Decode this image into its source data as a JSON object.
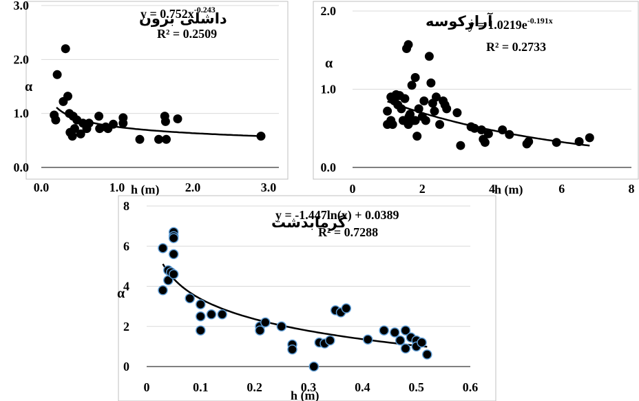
{
  "chart_data": [
    {
      "type": "scatter",
      "title": "داشلی برون",
      "equation": "y = 0.752x",
      "equation_exp": "-0.243",
      "r2": "R² = 0.2509",
      "xlabel": "h (m)",
      "ylabel": "α",
      "xlim": [
        0,
        3
      ],
      "ylim": [
        0,
        3
      ],
      "xticks": [
        "0.0",
        "1.0",
        "2.0",
        "3.0"
      ],
      "yticks": [
        "0.0",
        "1.0",
        "2.0",
        "3.0"
      ],
      "trendline": {
        "kind": "power",
        "a": 0.752,
        "b": -0.243,
        "x_from": 0.2,
        "x_to": 2.9
      },
      "series": [
        {
          "x": [
            0.17,
            0.19,
            0.21,
            0.29,
            0.32,
            0.35,
            0.37,
            0.38,
            0.41,
            0.42,
            0.44,
            0.47,
            0.52,
            0.55,
            0.6,
            0.63,
            0.76,
            0.77,
            0.85,
            0.88,
            0.95,
            1.08,
            1.08,
            1.3,
            1.55,
            1.63,
            1.64,
            1.65,
            1.8,
            2.9
          ],
          "y": [
            0.97,
            0.88,
            1.72,
            1.22,
            2.2,
            1.32,
            1.0,
            0.65,
            0.58,
            0.95,
            0.72,
            0.88,
            0.62,
            0.82,
            0.72,
            0.82,
            0.95,
            0.72,
            0.75,
            0.72,
            0.8,
            0.92,
            0.82,
            0.52,
            0.52,
            0.95,
            0.85,
            0.52,
            0.9,
            0.58
          ]
        }
      ]
    },
    {
      "type": "scatter",
      "title": "آرازکوسه",
      "equation": "y = 1.0219e",
      "equation_exp": "-0.191x",
      "r2": "R² = 0.2733",
      "xlabel": "h (m)",
      "ylabel": "α",
      "xlim": [
        0,
        8
      ],
      "ylim": [
        0,
        2
      ],
      "xticks": [
        "0",
        "2",
        "4",
        "6",
        "8"
      ],
      "yticks": [
        "0.0",
        "1.0",
        "2.0"
      ],
      "trendline": {
        "kind": "exp",
        "a": 1.0219,
        "b": -0.191,
        "x_from": 1.0,
        "x_to": 6.8
      },
      "series": [
        {
          "x": [
            1.0,
            1.0,
            1.1,
            1.1,
            1.15,
            1.2,
            1.25,
            1.3,
            1.35,
            1.4,
            1.45,
            1.5,
            1.55,
            1.6,
            1.6,
            1.62,
            1.65,
            1.7,
            1.75,
            1.8,
            1.8,
            1.85,
            1.9,
            2.0,
            2.05,
            2.1,
            2.2,
            2.25,
            2.3,
            2.35,
            2.4,
            2.5,
            2.6,
            2.65,
            2.7,
            3.0,
            3.1,
            3.4,
            3.5,
            3.7,
            3.75,
            3.8,
            3.9,
            4.3,
            4.5,
            5.0,
            5.05,
            5.85,
            6.5,
            6.8
          ],
          "y": [
            0.72,
            0.55,
            0.9,
            0.6,
            0.55,
            0.85,
            0.93,
            0.8,
            0.92,
            0.75,
            0.6,
            0.88,
            1.52,
            1.57,
            0.55,
            0.65,
            0.68,
            1.05,
            0.6,
            1.15,
            0.6,
            0.4,
            0.75,
            0.65,
            0.85,
            0.6,
            1.42,
            1.08,
            0.82,
            0.72,
            0.9,
            0.55,
            0.85,
            0.8,
            0.75,
            0.7,
            0.28,
            0.52,
            0.5,
            0.48,
            0.36,
            0.32,
            0.43,
            0.48,
            0.42,
            0.3,
            0.33,
            0.32,
            0.33,
            0.38
          ]
        }
      ]
    },
    {
      "type": "scatter",
      "title": "گرمابدشت",
      "equation": "y = -1.447ln(x) + 0.0389",
      "equation_exp": "",
      "r2": "R² = 0.7288",
      "xlabel": "h (m)",
      "ylabel": "α",
      "xlim": [
        0,
        0.6
      ],
      "ylim": [
        0,
        8
      ],
      "xticks": [
        "0",
        "0.1",
        "0.2",
        "0.3",
        "0.4",
        "0.5",
        "0.6"
      ],
      "yticks": [
        "0",
        "2",
        "4",
        "6",
        "8"
      ],
      "trendline": {
        "kind": "log",
        "a": -1.447,
        "b": 0.0389,
        "x_from": 0.03,
        "x_to": 0.52
      },
      "series": [
        {
          "x": [
            0.03,
            0.03,
            0.04,
            0.04,
            0.045,
            0.05,
            0.05,
            0.05,
            0.05,
            0.05,
            0.08,
            0.1,
            0.1,
            0.1,
            0.12,
            0.14,
            0.21,
            0.21,
            0.22,
            0.25,
            0.27,
            0.27,
            0.31,
            0.32,
            0.33,
            0.34,
            0.35,
            0.36,
            0.37,
            0.41,
            0.44,
            0.46,
            0.47,
            0.48,
            0.48,
            0.49,
            0.5,
            0.5,
            0.51,
            0.52
          ],
          "y": [
            5.9,
            3.8,
            4.8,
            4.3,
            4.7,
            6.7,
            6.5,
            6.4,
            5.6,
            4.6,
            3.4,
            3.1,
            2.5,
            1.8,
            2.6,
            2.6,
            2.0,
            1.8,
            2.2,
            2.0,
            1.1,
            0.85,
            0.0,
            1.2,
            1.15,
            1.3,
            2.8,
            2.7,
            2.9,
            1.35,
            1.8,
            1.7,
            1.3,
            1.8,
            0.9,
            1.45,
            1.3,
            1.0,
            1.2,
            0.6
          ]
        }
      ]
    }
  ]
}
